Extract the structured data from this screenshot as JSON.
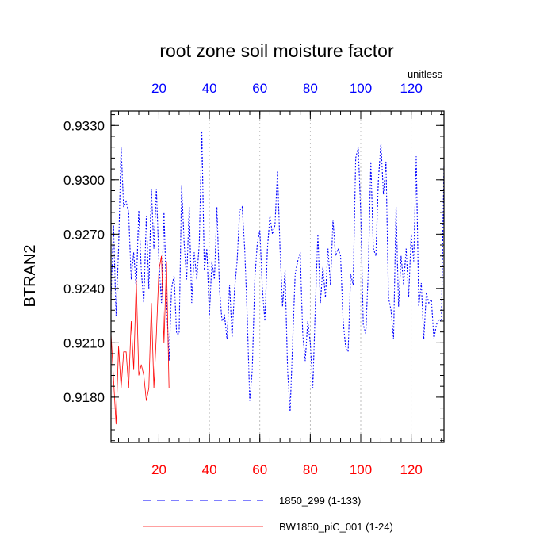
{
  "chart_data": {
    "type": "line",
    "title": "root zone soil moisture factor",
    "ylabel": "BTRAN2",
    "x_units_label": "unitless",
    "xlim": [
      1,
      133
    ],
    "ylim": [
      0.9155,
      0.9338
    ],
    "x_ticks": [
      20,
      40,
      60,
      80,
      100,
      120
    ],
    "x_tick_labels": [
      "20",
      "40",
      "60",
      "80",
      "100",
      "120"
    ],
    "y_ticks": [
      0.918,
      0.921,
      0.924,
      0.927,
      0.93,
      0.933
    ],
    "y_tick_labels": [
      "0.9180",
      "0.9210",
      "0.9240",
      "0.9270",
      "0.9300",
      "0.9330"
    ],
    "y_minor_step": 0.0006,
    "x_minor_step": 4,
    "grid": "vertical dotted at major x ticks",
    "top_axis_color": "#0000ff",
    "bottom_axis_color": "#ff0000",
    "series": [
      {
        "name": "1850_299 (1-133)",
        "color": "#0000ff",
        "style": "dashed",
        "x_start": 1,
        "values": [
          0.9235,
          0.9275,
          0.9225,
          0.9262,
          0.9318,
          0.9285,
          0.9288,
          0.9282,
          0.9245,
          0.926,
          0.924,
          0.9283,
          0.925,
          0.9232,
          0.928,
          0.924,
          0.9295,
          0.9262,
          0.9295,
          0.9255,
          0.9232,
          0.9282,
          0.9235,
          0.92,
          0.924,
          0.9247,
          0.9215,
          0.9215,
          0.9297,
          0.9265,
          0.9245,
          0.9285,
          0.9232,
          0.926,
          0.9245,
          0.9265,
          0.9327,
          0.925,
          0.9262,
          0.9225,
          0.9255,
          0.9245,
          0.9285,
          0.924,
          0.9222,
          0.9225,
          0.9212,
          0.9242,
          0.9213,
          0.924,
          0.9255,
          0.9283,
          0.9285,
          0.9262,
          0.9225,
          0.9178,
          0.9195,
          0.9245,
          0.9265,
          0.9272,
          0.924,
          0.9222,
          0.9262,
          0.928,
          0.927,
          0.9275,
          0.9305,
          0.9262,
          0.923,
          0.925,
          0.9195,
          0.9172,
          0.921,
          0.9248,
          0.9255,
          0.926,
          0.9215,
          0.92,
          0.9222,
          0.921,
          0.9185,
          0.923,
          0.927,
          0.9232,
          0.9252,
          0.9235,
          0.9262,
          0.9242,
          0.9278,
          0.9258,
          0.9262,
          0.9258,
          0.9222,
          0.9208,
          0.9205,
          0.9248,
          0.9242,
          0.9312,
          0.9318,
          0.9282,
          0.922,
          0.9215,
          0.925,
          0.931,
          0.9262,
          0.9258,
          0.93,
          0.932,
          0.9292,
          0.931,
          0.9235,
          0.9228,
          0.9212,
          0.9285,
          0.923,
          0.9258,
          0.9242,
          0.9262,
          0.9235,
          0.927,
          0.9255,
          0.9313,
          0.923,
          0.9243,
          0.9212,
          0.9238,
          0.9232,
          0.9234,
          0.9212,
          0.922,
          0.9223,
          0.9222,
          0.9308
        ]
      },
      {
        "name": "BW1850_piC_001 (1-24)",
        "color": "#ff0000",
        "style": "solid",
        "x_start": 1,
        "values": [
          0.9215,
          0.919,
          0.9165,
          0.9208,
          0.9185,
          0.9205,
          0.9205,
          0.9185,
          0.9222,
          0.9195,
          0.9245,
          0.9192,
          0.9198,
          0.9192,
          0.9178,
          0.9185,
          0.9232,
          0.9185,
          0.9215,
          0.925,
          0.9258,
          0.921,
          0.9255,
          0.9185
        ]
      }
    ]
  }
}
